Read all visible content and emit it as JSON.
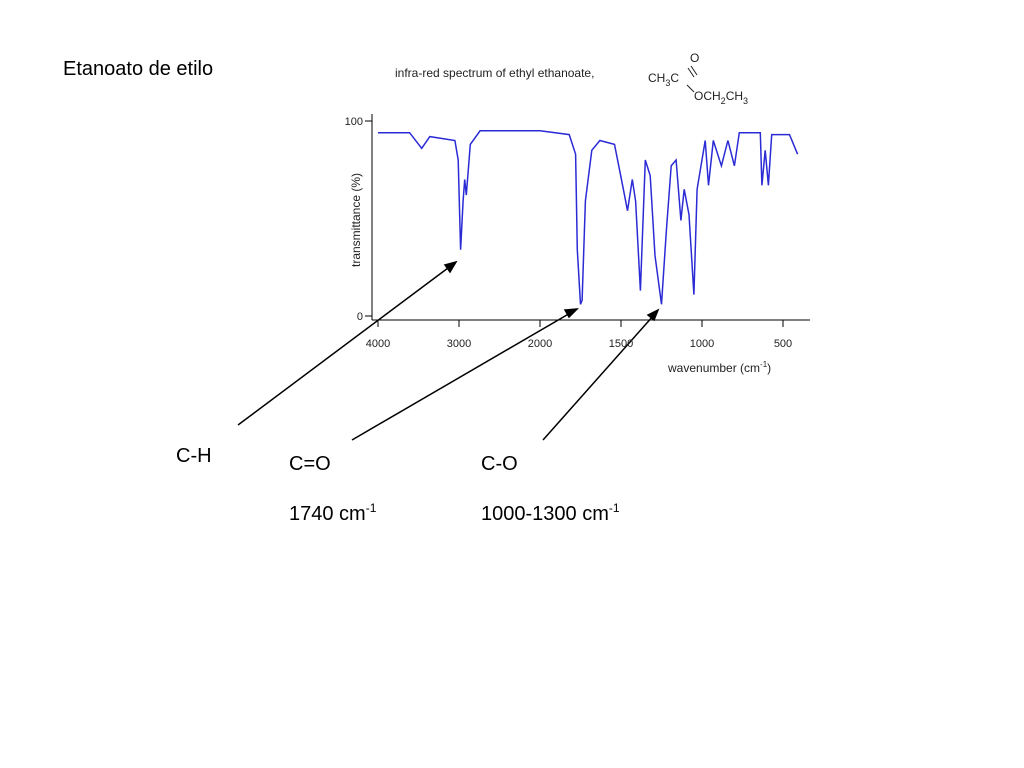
{
  "heading": "Etanoato de etilo",
  "chart_data": {
    "type": "line",
    "title": "infra-red spectrum of ethyl ethanoate,",
    "formula_left": [
      "CH",
      "3",
      "C"
    ],
    "formula_carbonyl": "O",
    "formula_right": [
      "OCH",
      "2",
      "CH",
      "3"
    ],
    "ylabel": "transmittance (%)",
    "xlabel": [
      "wavenumber (cm",
      "-1",
      ")"
    ],
    "xlim": [
      4000,
      400
    ],
    "x_scale_change": 2000,
    "xticks": [
      4000,
      3000,
      2000,
      1500,
      1000,
      500
    ],
    "ylim": [
      0,
      100
    ],
    "yticks": [
      0,
      100
    ],
    "color": "#2b2bd6",
    "x": [
      4000,
      3610,
      3460,
      3360,
      3050,
      3010,
      2980,
      2950,
      2930,
      2910,
      2860,
      2740,
      2000,
      1820,
      1780,
      1770,
      1750,
      1740,
      1720,
      1680,
      1630,
      1540,
      1490,
      1460,
      1430,
      1410,
      1380,
      1350,
      1320,
      1290,
      1250,
      1220,
      1190,
      1160,
      1130,
      1110,
      1080,
      1050,
      1030,
      980,
      960,
      930,
      880,
      840,
      800,
      770,
      640,
      630,
      610,
      590,
      570,
      460,
      410
    ],
    "values": [
      94,
      94,
      86,
      92,
      90,
      80,
      34,
      59,
      70,
      62,
      88,
      95,
      95,
      93,
      83,
      34,
      6,
      8,
      59,
      85,
      90,
      88,
      67,
      54,
      70,
      59,
      13,
      80,
      72,
      31,
      6,
      44,
      77,
      80,
      49,
      65,
      52,
      11,
      65,
      90,
      67,
      90,
      77,
      90,
      77,
      94,
      94,
      67,
      85,
      67,
      93,
      93,
      83
    ]
  },
  "annotations": {
    "ch": "C-H",
    "co_double": "C=O",
    "co_double_freq": [
      "1740 cm",
      "-1"
    ],
    "co_single": "C-O",
    "co_single_freq": [
      "1000-1300 cm",
      "-1"
    ]
  }
}
